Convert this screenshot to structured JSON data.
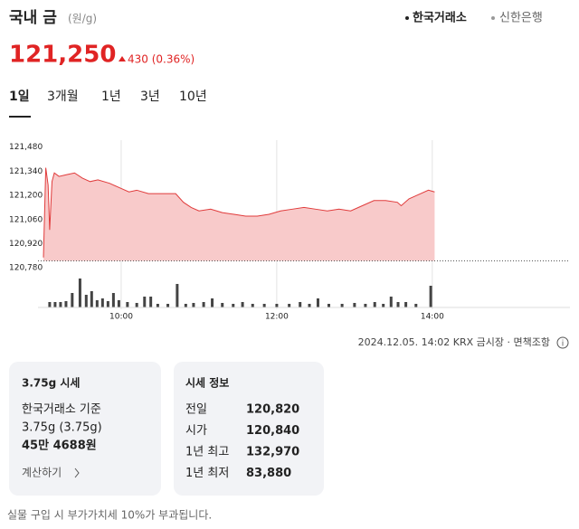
{
  "header": {
    "title": "국내 금",
    "unit": "(원/g)",
    "sources": [
      "한국거래소",
      "신한은행"
    ]
  },
  "quote": {
    "price": "121,250",
    "change": "430 (0.36%)"
  },
  "tabs": [
    "1일",
    "3개월",
    "1년",
    "3년",
    "10년"
  ],
  "chart_data": {
    "type": "area",
    "color": "#e03b3b",
    "fill": "#f8caca",
    "baseline": 120820,
    "x": [
      9.0,
      9.03,
      9.06,
      9.08,
      9.11,
      9.14,
      9.2,
      9.3,
      9.4,
      9.5,
      9.6,
      9.7,
      9.85,
      10.0,
      10.1,
      10.2,
      10.35,
      10.5,
      10.7,
      10.8,
      10.9,
      11.0,
      11.15,
      11.3,
      11.45,
      11.6,
      11.75,
      11.9,
      12.05,
      12.2,
      12.35,
      12.5,
      12.65,
      12.8,
      12.95,
      13.1,
      13.25,
      13.4,
      13.55,
      13.6,
      13.7,
      13.8,
      13.95,
      14.03
    ],
    "values": [
      120840,
      121360,
      121260,
      121000,
      121280,
      121330,
      121310,
      121320,
      121330,
      121300,
      121280,
      121290,
      121270,
      121240,
      121220,
      121230,
      121210,
      121210,
      121210,
      121160,
      121130,
      121110,
      121120,
      121100,
      121090,
      121080,
      121080,
      121090,
      121110,
      121120,
      121130,
      121120,
      121110,
      121120,
      121110,
      121140,
      121170,
      121170,
      121160,
      121140,
      121180,
      121200,
      121230,
      121220
    ],
    "xlim": [
      8.93,
      15.77
    ],
    "ylim": [
      120760,
      121520
    ],
    "yticks": [
      {
        "value": 121480,
        "label": "121,480"
      },
      {
        "value": 121340,
        "label": "121,340"
      },
      {
        "value": 121200,
        "label": "121,200"
      },
      {
        "value": 121060,
        "label": "121,060"
      },
      {
        "value": 120920,
        "label": "120,920"
      },
      {
        "value": 120780,
        "label": "120,780"
      }
    ],
    "xticks": [
      {
        "value": 10,
        "label": "10:00"
      },
      {
        "value": 12,
        "label": "12:00"
      },
      {
        "value": 14,
        "label": "14:00"
      }
    ],
    "volume": {
      "color": "#444444",
      "ylim": [
        0,
        35
      ],
      "x": [
        9.08,
        9.15,
        9.22,
        9.29,
        9.37,
        9.47,
        9.55,
        9.62,
        9.69,
        9.76,
        9.83,
        9.9,
        9.97,
        10.08,
        10.2,
        10.3,
        10.38,
        10.47,
        10.6,
        10.72,
        10.83,
        10.93,
        11.06,
        11.17,
        11.3,
        11.44,
        11.56,
        11.69,
        11.84,
        12.0,
        12.16,
        12.3,
        12.42,
        12.53,
        12.67,
        12.84,
        13.0,
        13.14,
        13.26,
        13.37,
        13.47,
        13.56,
        13.66,
        13.79,
        13.98
      ],
      "values": [
        6,
        6,
        6,
        7,
        16,
        32,
        14,
        18,
        8,
        10,
        7,
        16,
        8,
        6,
        5,
        12,
        12,
        4,
        4,
        26,
        4,
        5,
        6,
        10,
        5,
        4,
        6,
        4,
        4,
        4,
        4,
        6,
        4,
        10,
        4,
        4,
        5,
        4,
        6,
        4,
        12,
        6,
        6,
        4,
        24
      ]
    }
  },
  "source_note": {
    "timestamp": "2024.12.05. 14:02 KRX 금시장",
    "disclaimer": "면책조항"
  },
  "card_left": {
    "title": "3.75g 시세",
    "basis": "한국거래소 기준",
    "weight": "3.75g (3.75g)",
    "price": "45만 4688원",
    "link": "계산하기"
  },
  "card_right": {
    "title": "시세 정보",
    "rows": [
      [
        "전일",
        "120,820"
      ],
      [
        "시가",
        "120,840"
      ],
      [
        "1년 최고",
        "132,970"
      ],
      [
        "1년 최저",
        "83,880"
      ]
    ]
  },
  "footer": "실물 구입 시 부가가치세 10%가 부과됩니다."
}
